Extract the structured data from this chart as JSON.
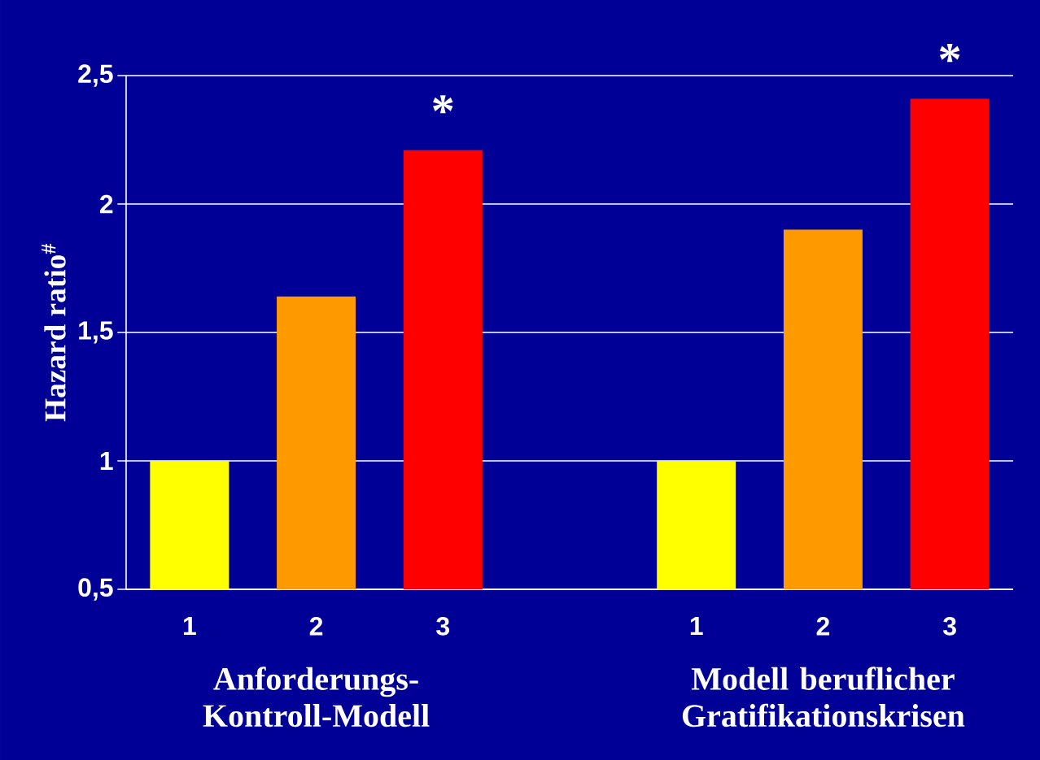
{
  "chart_data": {
    "type": "bar",
    "ylabel": "Hazard ratio$^{#}$",
    "categories": [
      "1",
      "2",
      "3",
      null,
      "1",
      "2",
      "3"
    ],
    "values": [
      1.0,
      1.64,
      2.21,
      null,
      1.0,
      1.9,
      2.41
    ],
    "colors": [
      "#ffff00",
      "#ff9900",
      "#ff0000",
      null,
      "#ffff00",
      "#ff9900",
      "#ff0000"
    ],
    "value_labels": [
      null,
      null,
      "*",
      null,
      null,
      null,
      "*"
    ],
    "ylim": [
      0.5,
      2.5
    ],
    "yticks": [
      {
        "value": 0.5,
        "label": "0,5"
      },
      1,
      {
        "value": 1.5,
        "label": "1,5"
      },
      2,
      {
        "value": 2.5,
        "label": "2,5"
      }
    ],
    "grid": "y",
    "annotations": [
      "Anforderungs-Kontroll-Modell",
      "Modell beruflicher Gratifikationskrisen"
    ]
  }
}
